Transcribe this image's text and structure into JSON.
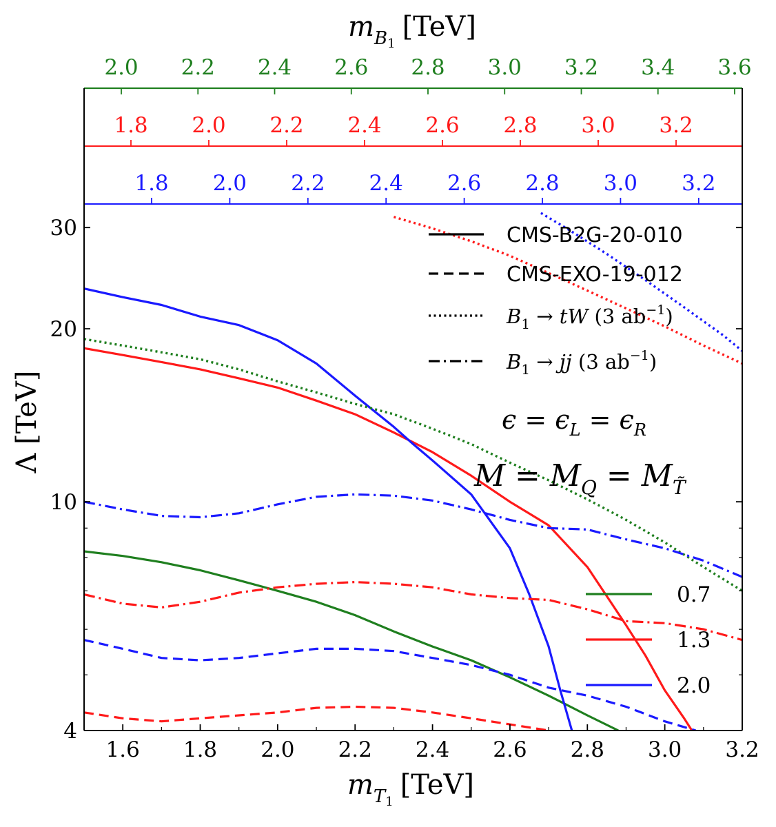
{
  "chart_data": {
    "type": "line",
    "xlabel": "m_{T_1} [TeV]",
    "xlabel_main": "m",
    "xlabel_sub": "T",
    "xlabel_subsub": "1",
    "xlabel_unit": "[TeV]",
    "ylabel": "Λ [TeV]",
    "top_axis_label": "m_{B_1} [TeV]",
    "top_axis_main": "m",
    "top_axis_sub": "B",
    "top_axis_subsub": "1",
    "top_axis_unit": "[TeV]",
    "xlim": [
      1.5,
      3.2
    ],
    "ylim": [
      4,
      37
    ],
    "y_scale": "log",
    "x_ticks": [
      "1.6",
      "1.8",
      "2.0",
      "2.2",
      "2.4",
      "2.6",
      "2.8",
      "3.0",
      "3.2"
    ],
    "y_ticks": [
      "4",
      "10",
      "20",
      "30"
    ],
    "top_axis_ticks": {
      "green": [
        "2.0",
        "2.2",
        "2.4",
        "2.6",
        "2.8",
        "3.0",
        "3.2",
        "3.4",
        "3.6"
      ],
      "red": [
        "1.8",
        "2.0",
        "2.2",
        "2.4",
        "2.6",
        "2.8",
        "3.0",
        "3.2"
      ],
      "blue": [
        "1.8",
        "2.0",
        "2.2",
        "2.4",
        "2.6",
        "2.8",
        "3.0",
        "3.2"
      ]
    },
    "colors": {
      "green": "#1f7f1f",
      "red": "#ff1a1a",
      "blue": "#1a1aff"
    },
    "style_legend": [
      {
        "label": "CMS-B2G-20-010",
        "style": "solid"
      },
      {
        "label": "CMS-EXO-19-012",
        "style": "dashed"
      },
      {
        "label": "B_1 → tW (3 ab^-1)",
        "label_main": "B",
        "label_sub": "1",
        "label_rest_italic": "tW",
        "label_lumi": "(3 ab",
        "label_sup": "−1",
        "label_close": ")",
        "style": "dotted"
      },
      {
        "label": "B_1 → jj (3 ab^-1)",
        "label_main": "B",
        "label_sub": "1",
        "label_rest_italic": "jj",
        "label_lumi": "(3 ab",
        "label_sup": "−1",
        "label_close": ")",
        "style": "dashdot"
      }
    ],
    "annotations": [
      "ϵ = ϵ_L = ϵ_R",
      "M = M_Q = M_T̃"
    ],
    "color_legend": [
      {
        "label": "0.7",
        "color": "#1f7f1f"
      },
      {
        "label": "1.3",
        "color": "#ff1a1a"
      },
      {
        "label": "2.0",
        "color": "#1a1aff"
      }
    ],
    "series": [
      {
        "color": "green",
        "style": "solid",
        "x": [
          1.5,
          1.6,
          1.7,
          1.8,
          1.9,
          2.0,
          2.1,
          2.2,
          2.3,
          2.4,
          2.5,
          2.6,
          2.7,
          2.8,
          2.88
        ],
        "y": [
          8.2,
          8.05,
          7.85,
          7.6,
          7.3,
          7.0,
          6.7,
          6.35,
          5.95,
          5.6,
          5.3,
          4.95,
          4.6,
          4.25,
          4.0
        ]
      },
      {
        "color": "red",
        "style": "solid",
        "x": [
          1.5,
          1.6,
          1.7,
          1.8,
          1.9,
          2.0,
          2.1,
          2.2,
          2.3,
          2.4,
          2.5,
          2.6,
          2.7,
          2.8,
          2.9,
          2.95,
          3.0,
          3.05,
          3.07
        ],
        "y": [
          18.5,
          18.0,
          17.5,
          17.0,
          16.4,
          15.8,
          15.0,
          14.2,
          13.2,
          12.2,
          11.1,
          10.0,
          9.1,
          7.7,
          6.1,
          5.4,
          4.7,
          4.2,
          4.0
        ]
      },
      {
        "color": "blue",
        "style": "solid",
        "x": [
          1.5,
          1.6,
          1.7,
          1.8,
          1.9,
          2.0,
          2.1,
          2.2,
          2.3,
          2.35,
          2.4,
          2.5,
          2.6,
          2.65,
          2.7,
          2.73,
          2.76
        ],
        "y": [
          23.5,
          22.7,
          22.0,
          21.0,
          20.3,
          19.1,
          17.4,
          15.3,
          13.5,
          12.6,
          11.8,
          10.3,
          8.3,
          6.9,
          5.6,
          4.7,
          4.0
        ]
      },
      {
        "color": "green",
        "style": "dotted",
        "x": [
          1.5,
          1.6,
          1.7,
          1.8,
          1.9,
          2.0,
          2.1,
          2.2,
          2.3,
          2.4,
          2.5,
          2.6,
          2.7,
          2.8,
          2.9,
          3.0,
          3.1,
          3.2
        ],
        "y": [
          19.2,
          18.7,
          18.2,
          17.7,
          17.0,
          16.2,
          15.5,
          14.8,
          14.2,
          13.4,
          12.6,
          11.7,
          10.9,
          10.1,
          9.3,
          8.5,
          7.7,
          7.0
        ]
      },
      {
        "color": "red",
        "style": "dotted",
        "x": [
          2.3,
          2.4,
          2.5,
          2.6,
          2.7,
          2.8,
          2.9,
          3.0,
          3.1,
          3.2
        ],
        "y": [
          31.3,
          29.9,
          28.4,
          26.8,
          25.0,
          23.3,
          21.7,
          20.2,
          18.7,
          17.4
        ]
      },
      {
        "color": "blue",
        "style": "dotted",
        "x": [
          2.68,
          2.75,
          2.85,
          2.95,
          3.05,
          3.15,
          3.2
        ],
        "y": [
          31.8,
          29.8,
          27.0,
          24.3,
          21.8,
          19.5,
          18.3
        ]
      },
      {
        "color": "blue",
        "style": "dashdot",
        "x": [
          1.5,
          1.6,
          1.7,
          1.8,
          1.9,
          2.0,
          2.1,
          2.2,
          2.3,
          2.4,
          2.5,
          2.6,
          2.7,
          2.8,
          2.9,
          3.0,
          3.1,
          3.2
        ],
        "y": [
          10.0,
          9.7,
          9.45,
          9.4,
          9.55,
          9.9,
          10.2,
          10.3,
          10.25,
          10.05,
          9.7,
          9.3,
          9.0,
          8.95,
          8.6,
          8.3,
          7.9,
          7.4
        ]
      },
      {
        "color": "red",
        "style": "dashdot",
        "x": [
          1.5,
          1.6,
          1.7,
          1.8,
          1.9,
          2.0,
          2.1,
          2.2,
          2.3,
          2.4,
          2.5,
          2.6,
          2.7,
          2.8,
          2.9,
          3.0,
          3.1,
          3.2
        ],
        "y": [
          6.9,
          6.65,
          6.55,
          6.7,
          6.95,
          7.1,
          7.2,
          7.25,
          7.2,
          7.1,
          6.9,
          6.8,
          6.75,
          6.5,
          6.2,
          6.15,
          6.0,
          5.75
        ]
      },
      {
        "color": "blue",
        "style": "dashed",
        "x": [
          1.5,
          1.6,
          1.7,
          1.8,
          1.9,
          2.0,
          2.1,
          2.2,
          2.3,
          2.4,
          2.5,
          2.6,
          2.7,
          2.8,
          2.9,
          3.0,
          3.08
        ],
        "y": [
          5.75,
          5.55,
          5.35,
          5.3,
          5.35,
          5.45,
          5.55,
          5.55,
          5.5,
          5.35,
          5.2,
          5.0,
          4.75,
          4.6,
          4.4,
          4.15,
          4.0
        ]
      },
      {
        "color": "red",
        "style": "dashed",
        "x": [
          1.5,
          1.6,
          1.7,
          1.8,
          1.9,
          2.0,
          2.1,
          2.2,
          2.3,
          2.4,
          2.5,
          2.6,
          2.7
        ],
        "y": [
          4.3,
          4.2,
          4.15,
          4.2,
          4.25,
          4.3,
          4.38,
          4.4,
          4.38,
          4.3,
          4.2,
          4.1,
          4.0
        ]
      }
    ]
  }
}
